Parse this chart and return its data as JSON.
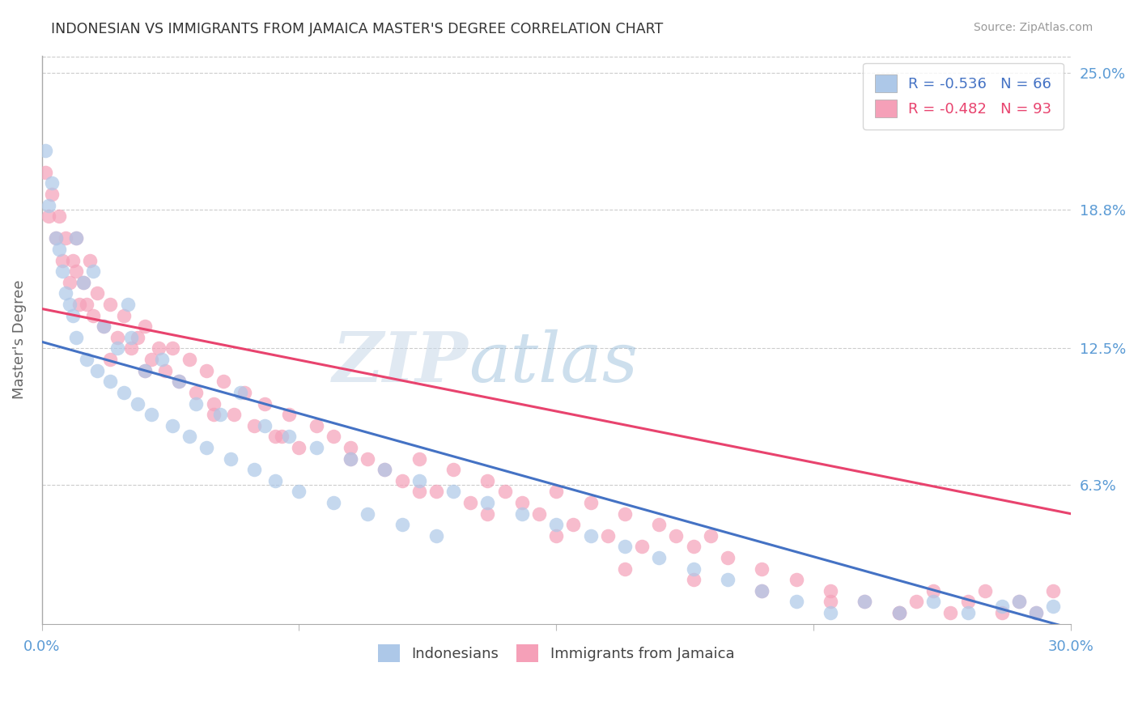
{
  "title": "INDONESIAN VS IMMIGRANTS FROM JAMAICA MASTER'S DEGREE CORRELATION CHART",
  "source": "Source: ZipAtlas.com",
  "ylabel": "Master's Degree",
  "ytick_labels": [
    "25.0%",
    "18.8%",
    "12.5%",
    "6.3%"
  ],
  "ytick_values": [
    0.25,
    0.188,
    0.125,
    0.063
  ],
  "xmin": 0.0,
  "xmax": 0.3,
  "ymin": 0.0,
  "ymax": 0.258,
  "legend_entry1": "R = -0.536   N = 66",
  "legend_entry2": "R = -0.482   N = 93",
  "watermark_zip": "ZIP",
  "watermark_atlas": "atlas",
  "color_blue": "#adc8e8",
  "color_pink": "#f5a0b8",
  "line_blue": "#4472c4",
  "line_pink": "#e8436e",
  "axis_label_color": "#5b9bd5",
  "indonesians_x": [
    0.001,
    0.002,
    0.003,
    0.004,
    0.005,
    0.006,
    0.007,
    0.008,
    0.009,
    0.01,
    0.012,
    0.013,
    0.015,
    0.016,
    0.018,
    0.02,
    0.022,
    0.024,
    0.026,
    0.028,
    0.03,
    0.032,
    0.035,
    0.038,
    0.04,
    0.043,
    0.045,
    0.048,
    0.052,
    0.055,
    0.058,
    0.062,
    0.065,
    0.068,
    0.072,
    0.075,
    0.08,
    0.085,
    0.09,
    0.095,
    0.1,
    0.105,
    0.11,
    0.115,
    0.12,
    0.13,
    0.14,
    0.15,
    0.16,
    0.17,
    0.18,
    0.19,
    0.2,
    0.21,
    0.22,
    0.23,
    0.24,
    0.25,
    0.26,
    0.27,
    0.28,
    0.285,
    0.29,
    0.295,
    0.01,
    0.025
  ],
  "indonesians_y": [
    0.215,
    0.19,
    0.2,
    0.175,
    0.17,
    0.16,
    0.15,
    0.145,
    0.14,
    0.13,
    0.155,
    0.12,
    0.16,
    0.115,
    0.135,
    0.11,
    0.125,
    0.105,
    0.13,
    0.1,
    0.115,
    0.095,
    0.12,
    0.09,
    0.11,
    0.085,
    0.1,
    0.08,
    0.095,
    0.075,
    0.105,
    0.07,
    0.09,
    0.065,
    0.085,
    0.06,
    0.08,
    0.055,
    0.075,
    0.05,
    0.07,
    0.045,
    0.065,
    0.04,
    0.06,
    0.055,
    0.05,
    0.045,
    0.04,
    0.035,
    0.03,
    0.025,
    0.02,
    0.015,
    0.01,
    0.005,
    0.01,
    0.005,
    0.01,
    0.005,
    0.008,
    0.01,
    0.005,
    0.008,
    0.175,
    0.145
  ],
  "jamaica_x": [
    0.001,
    0.002,
    0.003,
    0.004,
    0.005,
    0.006,
    0.007,
    0.008,
    0.009,
    0.01,
    0.011,
    0.012,
    0.013,
    0.014,
    0.015,
    0.016,
    0.018,
    0.02,
    0.022,
    0.024,
    0.026,
    0.028,
    0.03,
    0.032,
    0.034,
    0.036,
    0.038,
    0.04,
    0.043,
    0.045,
    0.048,
    0.05,
    0.053,
    0.056,
    0.059,
    0.062,
    0.065,
    0.068,
    0.072,
    0.075,
    0.08,
    0.085,
    0.09,
    0.095,
    0.1,
    0.105,
    0.11,
    0.115,
    0.12,
    0.125,
    0.13,
    0.135,
    0.14,
    0.145,
    0.15,
    0.155,
    0.16,
    0.165,
    0.17,
    0.175,
    0.18,
    0.185,
    0.19,
    0.195,
    0.2,
    0.21,
    0.22,
    0.23,
    0.24,
    0.25,
    0.255,
    0.26,
    0.265,
    0.27,
    0.275,
    0.28,
    0.285,
    0.29,
    0.295,
    0.01,
    0.02,
    0.03,
    0.05,
    0.07,
    0.09,
    0.11,
    0.13,
    0.15,
    0.17,
    0.19,
    0.21,
    0.23,
    0.25
  ],
  "jamaica_y": [
    0.205,
    0.185,
    0.195,
    0.175,
    0.185,
    0.165,
    0.175,
    0.155,
    0.165,
    0.175,
    0.145,
    0.155,
    0.145,
    0.165,
    0.14,
    0.15,
    0.135,
    0.145,
    0.13,
    0.14,
    0.125,
    0.13,
    0.135,
    0.12,
    0.125,
    0.115,
    0.125,
    0.11,
    0.12,
    0.105,
    0.115,
    0.1,
    0.11,
    0.095,
    0.105,
    0.09,
    0.1,
    0.085,
    0.095,
    0.08,
    0.09,
    0.085,
    0.08,
    0.075,
    0.07,
    0.065,
    0.075,
    0.06,
    0.07,
    0.055,
    0.065,
    0.06,
    0.055,
    0.05,
    0.06,
    0.045,
    0.055,
    0.04,
    0.05,
    0.035,
    0.045,
    0.04,
    0.035,
    0.04,
    0.03,
    0.025,
    0.02,
    0.015,
    0.01,
    0.005,
    0.01,
    0.015,
    0.005,
    0.01,
    0.015,
    0.005,
    0.01,
    0.005,
    0.015,
    0.16,
    0.12,
    0.115,
    0.095,
    0.085,
    0.075,
    0.06,
    0.05,
    0.04,
    0.025,
    0.02,
    0.015,
    0.01,
    0.005
  ],
  "blue_line_x": [
    0.0,
    0.3
  ],
  "blue_line_y": [
    0.128,
    -0.002
  ],
  "pink_line_x": [
    0.0,
    0.3
  ],
  "pink_line_y": [
    0.143,
    0.05
  ]
}
